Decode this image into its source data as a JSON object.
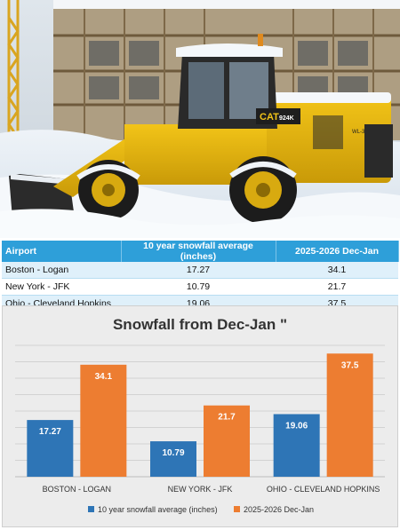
{
  "photo": {
    "brand": "CAT",
    "model": "924K",
    "side_mark": "WL-3"
  },
  "table": {
    "headers": [
      "Airport",
      "10 year snowfall average (inches)",
      "2025-2026 Dec-Jan"
    ],
    "rows": [
      [
        "Boston - Logan",
        "17.27",
        "34.1"
      ],
      [
        "New York - JFK",
        "10.79",
        "21.7"
      ],
      [
        "Ohio - Cleveland Hopkins",
        "19.06",
        "37.5"
      ]
    ]
  },
  "colors": {
    "series_a": "#2e75b6",
    "series_b": "#ed7d31",
    "table_header": "#2e9fd9"
  },
  "chart_data": {
    "type": "bar",
    "title": "Snowfall from Dec-Jan \"",
    "categories": [
      "BOSTON - LOGAN",
      "NEW YORK - JFK",
      "OHIO - CLEVELAND HOPKINS"
    ],
    "series": [
      {
        "name": "10 year snowfall average (inches)",
        "values": [
          17.27,
          10.79,
          19.06
        ]
      },
      {
        "name": "2025-2026 Dec-Jan",
        "values": [
          34.1,
          21.7,
          37.5
        ]
      }
    ],
    "ylim": [
      0,
      40
    ],
    "grid": true,
    "legend": "bottom"
  }
}
